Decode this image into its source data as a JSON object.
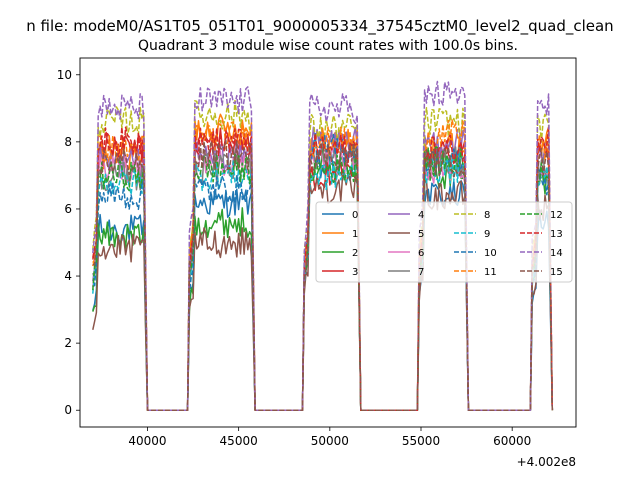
{
  "chart_data": {
    "type": "line",
    "suptitle": "n file: modeM0/AS1T05_051T01_9000005334_37545cztM0_level2_quad_clean",
    "title": "Quadrant 3 module wise count rates with 100.0s bins.",
    "xlabel": "",
    "ylabel": "",
    "x_offset_label": "+4.002e8",
    "xlim": [
      36300,
      63500
    ],
    "ylim": [
      -0.5,
      10.5
    ],
    "xticks": [
      40000,
      45000,
      50000,
      55000,
      60000
    ],
    "xtick_labels": [
      "40000",
      "45000",
      "50000",
      "55000",
      "60000"
    ],
    "yticks": [
      0,
      2,
      4,
      6,
      8,
      10
    ],
    "ytick_labels": [
      "0",
      "2",
      "4",
      "6",
      "8",
      "10"
    ],
    "segments": [
      [
        37000,
        40000
      ],
      [
        42300,
        45900
      ],
      [
        48600,
        51700
      ],
      [
        54900,
        57600
      ],
      [
        61100,
        62200
      ]
    ],
    "gaps_value": 0,
    "legend_position": "center-right",
    "series": [
      {
        "name": "0",
        "color": "#1f77b4",
        "dash": false,
        "levels": [
          5.4,
          6.2,
          7.2,
          6.4,
          5.6
        ]
      },
      {
        "name": "1",
        "color": "#ff7f0e",
        "dash": false,
        "levels": [
          7.6,
          8.4,
          8.0,
          7.8,
          8.0
        ]
      },
      {
        "name": "2",
        "color": "#2ca02c",
        "dash": false,
        "levels": [
          5.2,
          5.6,
          7.4,
          7.0,
          6.8
        ]
      },
      {
        "name": "3",
        "color": "#d62728",
        "dash": false,
        "levels": [
          7.8,
          8.0,
          7.0,
          7.6,
          7.4
        ]
      },
      {
        "name": "4",
        "color": "#9467bd",
        "dash": false,
        "levels": [
          7.4,
          7.6,
          8.0,
          8.0,
          7.6
        ]
      },
      {
        "name": "5",
        "color": "#8c564b",
        "dash": false,
        "levels": [
          4.8,
          5.0,
          6.6,
          6.4,
          6.0
        ]
      },
      {
        "name": "6",
        "color": "#e377c2",
        "dash": false,
        "levels": [
          7.2,
          7.4,
          7.4,
          7.2,
          7.0
        ]
      },
      {
        "name": "7",
        "color": "#7f7f7f",
        "dash": false,
        "levels": [
          7.0,
          7.2,
          7.6,
          7.4,
          7.2
        ]
      },
      {
        "name": "8",
        "color": "#bcbd22",
        "dash": true,
        "levels": [
          8.6,
          8.8,
          8.4,
          8.6,
          8.4
        ]
      },
      {
        "name": "9",
        "color": "#17becf",
        "dash": true,
        "levels": [
          6.8,
          7.0,
          7.0,
          7.2,
          7.0
        ]
      },
      {
        "name": "10",
        "color": "#1f77b4",
        "dash": true,
        "levels": [
          6.4,
          6.6,
          7.8,
          7.4,
          6.8
        ]
      },
      {
        "name": "11",
        "color": "#ff7f0e",
        "dash": true,
        "levels": [
          7.8,
          8.2,
          8.0,
          8.2,
          7.8
        ]
      },
      {
        "name": "12",
        "color": "#2ca02c",
        "dash": true,
        "levels": [
          7.0,
          7.2,
          7.2,
          7.4,
          7.2
        ]
      },
      {
        "name": "13",
        "color": "#d62728",
        "dash": true,
        "levels": [
          8.0,
          8.0,
          7.8,
          7.8,
          8.2
        ]
      },
      {
        "name": "14",
        "color": "#9467bd",
        "dash": true,
        "levels": [
          9.0,
          9.2,
          9.0,
          9.4,
          9.0
        ]
      },
      {
        "name": "15",
        "color": "#8c564b",
        "dash": true,
        "levels": [
          7.4,
          7.6,
          7.6,
          7.4,
          7.4
        ]
      }
    ]
  }
}
